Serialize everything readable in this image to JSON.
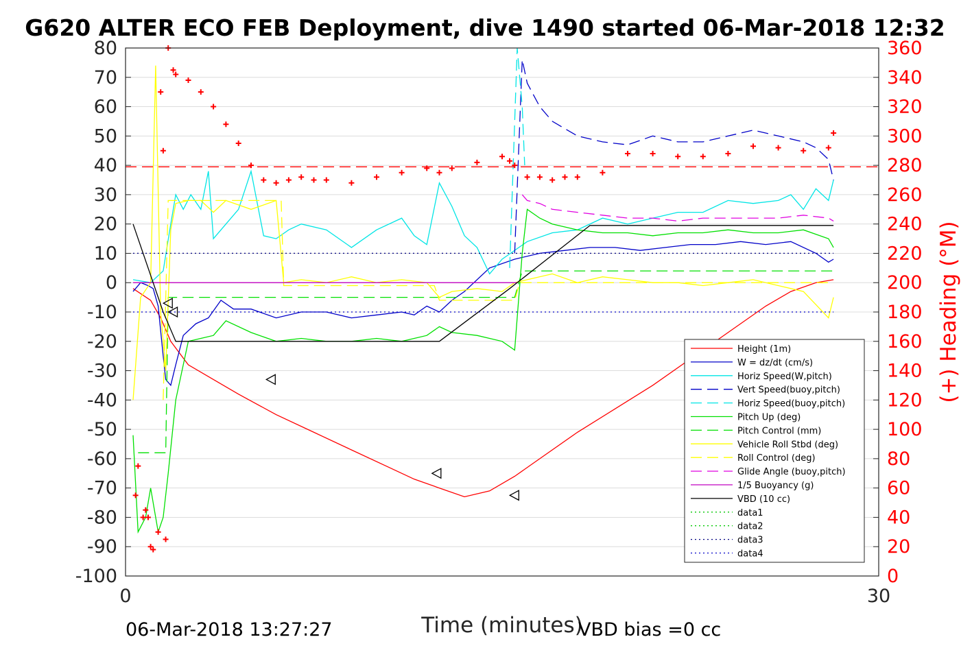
{
  "chart_data": {
    "type": "line",
    "title": "G620 ALTER ECO FEB Deployment, dive 1490 started 06-Mar-2018 12:32",
    "xlabel": "Time (minutes)",
    "ylabel_right": "(+) Heading (°M)",
    "xlim": [
      0,
      30
    ],
    "ylim_left": [
      -100,
      80
    ],
    "ylim_right": [
      0,
      360
    ],
    "x_ticks": [
      "0",
      "30"
    ],
    "y_ticks_left": [
      "80",
      "70",
      "60",
      "50",
      "40",
      "30",
      "20",
      "10",
      "0",
      "-10",
      "-20",
      "-30",
      "-40",
      "-50",
      "-60",
      "-70",
      "-80",
      "-90",
      "-100"
    ],
    "y_ticks_right": [
      "360",
      "340",
      "320",
      "300",
      "280",
      "260",
      "240",
      "220",
      "200",
      "180",
      "160",
      "140",
      "120",
      "100",
      "80",
      "60",
      "40",
      "20",
      "0"
    ],
    "legend_position": "lower-right",
    "legend": [
      {
        "label": "Height (1m)",
        "color": "#ff0000",
        "style": "solid"
      },
      {
        "label": "W = dz/dt (cm/s)",
        "color": "#0000c8",
        "style": "solid"
      },
      {
        "label": "Horiz Speed(W,pitch)",
        "color": "#00e5e5",
        "style": "solid"
      },
      {
        "label": "Vert Speed(buoy,pitch)",
        "color": "#0000c8",
        "style": "dashed"
      },
      {
        "label": "Horiz Speed(buoy,pitch)",
        "color": "#00e5e5",
        "style": "dashed"
      },
      {
        "label": "Pitch Up (deg)",
        "color": "#00e000",
        "style": "solid"
      },
      {
        "label": "Pitch Control (mm)",
        "color": "#00e000",
        "style": "dashed"
      },
      {
        "label": "Vehicle Roll Stbd (deg)",
        "color": "#ffff00",
        "style": "solid"
      },
      {
        "label": "Roll Control (deg)",
        "color": "#ffff00",
        "style": "dashed"
      },
      {
        "label": "Glide Angle (buoy,pitch)",
        "color": "#e000e0",
        "style": "dashed"
      },
      {
        "label": "1/5 Buoyancy (g)",
        "color": "#c000c0",
        "style": "solid"
      },
      {
        "label": "VBD (10 cc)",
        "color": "#000000",
        "style": "solid"
      },
      {
        "label": "data1",
        "color": "#00c800",
        "style": "dotted"
      },
      {
        "label": "data2",
        "color": "#00c800",
        "style": "dotted"
      },
      {
        "label": "data3",
        "color": "#000080",
        "style": "dotted"
      },
      {
        "label": "data4",
        "color": "#0000c8",
        "style": "dotted"
      }
    ],
    "series": [
      {
        "name": "Height (1m)",
        "axis": "left",
        "x": [
          0.3,
          1.0,
          1.4,
          1.8,
          2.5,
          3.5,
          4.5,
          6,
          7.5,
          9,
          10.5,
          11.5,
          12.5,
          13.5,
          14.5,
          15.5,
          16.5,
          18,
          19.5,
          21,
          22.5,
          24,
          25.5,
          26.5,
          27.5,
          28.2
        ],
        "y": [
          -2,
          -6,
          -12,
          -20,
          -28,
          -33,
          -38,
          -45,
          -51,
          -57,
          -63,
          -67,
          -70,
          -73,
          -71,
          -66,
          -60,
          -51,
          -43,
          -35,
          -26,
          -17,
          -8,
          -3,
          0,
          1
        ]
      },
      {
        "name": "W = dz/dt (cm/s)",
        "axis": "left",
        "x": [
          0.3,
          0.6,
          0.9,
          1.1,
          1.3,
          1.5,
          1.6,
          1.8,
          2.0,
          2.3,
          2.8,
          3.3,
          3.8,
          4.3,
          5,
          6,
          7,
          8,
          9,
          10,
          11,
          11.5,
          12,
          12.5,
          13,
          13.5,
          14.5,
          15.5,
          16.5,
          17.5,
          18.5,
          19.5,
          20.5,
          21.5,
          22.5,
          23.5,
          24.5,
          25.5,
          26.5,
          27.5,
          28,
          28.2
        ],
        "y": [
          -3,
          0,
          -1,
          -2,
          -8,
          -25,
          -33,
          -35,
          -28,
          -18,
          -14,
          -12,
          -6,
          -9,
          -9,
          -12,
          -10,
          -10,
          -12,
          -11,
          -10,
          -11,
          -8,
          -10,
          -6,
          -3,
          5,
          8,
          10,
          11,
          12,
          12,
          11,
          12,
          13,
          13,
          14,
          13,
          14,
          10,
          7,
          8
        ]
      },
      {
        "name": "Horiz Speed(W,pitch)",
        "axis": "left",
        "x": [
          0.3,
          1.0,
          1.5,
          1.8,
          2.0,
          2.3,
          2.6,
          3.0,
          3.3,
          3.5,
          4,
          4.5,
          5,
          5.5,
          6,
          6.5,
          7,
          8,
          9,
          10,
          11,
          11.5,
          12,
          12.5,
          13,
          13.5,
          14,
          14.5,
          15,
          16,
          17,
          18,
          19,
          20,
          21,
          22,
          23,
          24,
          25,
          26,
          26.5,
          27,
          27.5,
          28,
          28.2
        ],
        "y": [
          1,
          0,
          4,
          20,
          30,
          25,
          30,
          25,
          38,
          15,
          20,
          25,
          38,
          16,
          15,
          18,
          20,
          18,
          12,
          18,
          22,
          16,
          13,
          34,
          26,
          16,
          12,
          3,
          8,
          14,
          17,
          18,
          22,
          20,
          22,
          24,
          24,
          28,
          27,
          28,
          30,
          25,
          32,
          28,
          35
        ]
      },
      {
        "name": "Vert Speed(buoy,pitch)",
        "axis": "left",
        "x": [
          15.5,
          15.8,
          16,
          16.5,
          17,
          18,
          19,
          20,
          21,
          22,
          23,
          24,
          25,
          26,
          27,
          27.5,
          28,
          28.2
        ],
        "y": [
          10,
          76,
          68,
          60,
          55,
          50,
          48,
          47,
          50,
          48,
          48,
          50,
          52,
          50,
          48,
          46,
          42,
          35
        ]
      },
      {
        "name": "Horiz Speed(buoy,pitch)",
        "axis": "left",
        "x": [
          15.3,
          15.6,
          15.8,
          15.9
        ],
        "y": [
          5,
          80,
          60,
          40
        ]
      },
      {
        "name": "Pitch Up (deg)",
        "axis": "left",
        "x": [
          0.3,
          0.5,
          0.8,
          1.0,
          1.3,
          1.5,
          1.7,
          2.0,
          2.5,
          3,
          3.5,
          4,
          5,
          6,
          7,
          8,
          9,
          10,
          11,
          12,
          12.5,
          13,
          14,
          15,
          15.5,
          15.8,
          16,
          16.5,
          17,
          18,
          19,
          20,
          21,
          22,
          23,
          24,
          25,
          26,
          27,
          28,
          28.2
        ],
        "y": [
          -52,
          -85,
          -80,
          -70,
          -85,
          -80,
          -65,
          -40,
          -20,
          -19,
          -18,
          -13,
          -17,
          -20,
          -19,
          -20,
          -20,
          -19,
          -20,
          -18,
          -15,
          -17,
          -18,
          -20,
          -23,
          10,
          25,
          22,
          20,
          18,
          17,
          17,
          16,
          17,
          17,
          18,
          17,
          17,
          18,
          15,
          12
        ]
      },
      {
        "name": "Pitch Control (mm)",
        "axis": "left",
        "x": [
          0.5,
          1.6,
          1.7,
          2.0,
          14.5,
          15.5,
          15.8,
          28.2
        ],
        "y": [
          -58,
          -58,
          -5,
          -5,
          -5,
          -5,
          4,
          4
        ]
      },
      {
        "name": "Vehicle Roll Stbd (deg)",
        "axis": "left",
        "x": [
          0.3,
          0.6,
          1.0,
          1.2,
          1.4,
          1.6,
          1.8,
          2.0,
          2.5,
          3,
          3.5,
          4,
          5,
          6,
          6.3,
          7,
          8,
          9,
          10,
          11,
          12,
          12.5,
          13,
          14,
          15,
          15.5,
          16,
          17,
          18,
          19,
          20,
          21,
          22,
          23,
          24,
          25,
          26,
          27,
          28,
          28.2
        ],
        "y": [
          -40,
          -5,
          0,
          74,
          -10,
          -30,
          18,
          27,
          28,
          28,
          24,
          28,
          25,
          28,
          0,
          1,
          0,
          2,
          0,
          1,
          0,
          -5,
          -3,
          -2,
          -3,
          0,
          1,
          3,
          0,
          2,
          1,
          0,
          0,
          -1,
          0,
          1,
          -1,
          -3,
          -12,
          -5
        ]
      },
      {
        "name": "Roll Control (deg)",
        "axis": "left",
        "x": [
          1.5,
          1.7,
          2.0,
          2.3,
          5.5,
          6.2,
          6.3,
          12.3,
          12.5,
          15.5,
          15.7,
          28.2
        ],
        "y": [
          -40,
          28,
          28,
          28,
          28,
          28,
          -1,
          -1,
          -6,
          -6,
          0,
          0
        ]
      },
      {
        "name": "Glide Angle (buoy,pitch)",
        "axis": "left",
        "x": [
          15.8,
          16,
          16.5,
          17,
          18,
          19,
          20,
          21,
          22,
          23,
          24,
          25,
          26,
          27,
          28,
          28.2
        ],
        "y": [
          30,
          28,
          27,
          25,
          24,
          23,
          22,
          22,
          21,
          22,
          22,
          22,
          22,
          23,
          22,
          21
        ]
      },
      {
        "name": "1/5 Buoyancy (g)",
        "axis": "left",
        "x": [
          0.3,
          15.6
        ],
        "y": [
          0,
          0
        ]
      },
      {
        "name": "VBD (10 cc)",
        "axis": "left",
        "x": [
          0.3,
          1.5,
          2.0,
          12.5,
          15.3,
          18.5,
          28.2
        ],
        "y": [
          20,
          -10,
          -20,
          -20,
          -2,
          19.5,
          19.5
        ]
      },
      {
        "name": "data4",
        "axis": "left",
        "x": [
          0.3,
          28.2
        ],
        "y": [
          -10,
          -10
        ]
      },
      {
        "name": "data3",
        "axis": "left",
        "x": [
          0.3,
          28.2
        ],
        "y": [
          10,
          10
        ]
      },
      {
        "name": "Heading",
        "axis": "right",
        "marker": "+",
        "x": [
          0.4,
          0.5,
          0.7,
          0.8,
          0.9,
          1.0,
          1.1,
          1.3,
          1.4,
          1.5,
          1.6,
          1.7,
          1.9,
          2.0,
          2.5,
          3,
          3.5,
          4,
          4.5,
          5,
          5.5,
          6,
          6.5,
          7,
          7.5,
          8,
          9,
          10,
          11,
          12,
          12.5,
          13,
          14,
          15,
          15.3,
          15.5,
          16,
          16.5,
          17,
          17.5,
          18,
          19,
          20,
          21,
          22,
          23,
          24,
          25,
          26,
          27,
          28,
          28.2
        ],
        "y": [
          55,
          75,
          40,
          45,
          40,
          20,
          18,
          30,
          330,
          290,
          25,
          360,
          345,
          342,
          338,
          330,
          320,
          308,
          295,
          280,
          270,
          268,
          270,
          272,
          270,
          270,
          268,
          272,
          275,
          278,
          275,
          278,
          282,
          286,
          283,
          280,
          272,
          272,
          270,
          272,
          272,
          275,
          288,
          288,
          286,
          286,
          288,
          293,
          292,
          290,
          292,
          302
        ]
      },
      {
        "name": "Heading mean",
        "axis": "right",
        "style": "dashed",
        "x": [
          0,
          30
        ],
        "y": [
          279,
          279
        ]
      }
    ],
    "markers_triangle": [
      {
        "x": 1.7,
        "y": -7
      },
      {
        "x": 1.9,
        "y": -10
      },
      {
        "x": 5.8,
        "y": -33
      },
      {
        "x": 12.4,
        "y": -65
      },
      {
        "x": 15.5,
        "y": -72.5
      }
    ]
  },
  "footer": {
    "left": "06-Mar-2018 13:27:27",
    "right": "VBD bias =0 cc"
  }
}
